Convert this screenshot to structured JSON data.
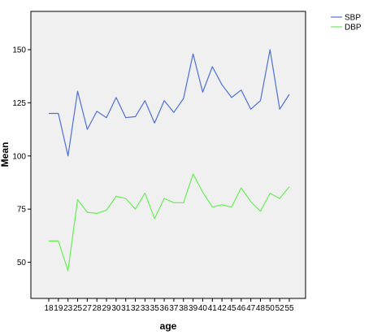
{
  "chart_data": {
    "type": "line",
    "xlabel": "age",
    "ylabel": "Mean",
    "ylim": [
      33,
      168
    ],
    "yticks": [
      50,
      75,
      100,
      125,
      150
    ],
    "grid": false,
    "legend_position": "top-right",
    "categories": [
      "18",
      "19",
      "23",
      "25",
      "27",
      "28",
      "29",
      "30",
      "31",
      "32",
      "33",
      "35",
      "36",
      "37",
      "38",
      "39",
      "40",
      "41",
      "42",
      "45",
      "46",
      "47",
      "48",
      "50",
      "52",
      "55"
    ],
    "series": [
      {
        "name": "SBP",
        "color": "#4f6fd6",
        "values": [
          120,
          120,
          100,
          130.5,
          112.5,
          121,
          118,
          127.5,
          118,
          118.5,
          126,
          115.5,
          126,
          120.5,
          127,
          148,
          130,
          142,
          133.5,
          127.5,
          131,
          122,
          126,
          150,
          122,
          129
        ]
      },
      {
        "name": "DBP",
        "color": "#66ee55",
        "values": [
          60,
          60,
          46,
          79.5,
          73.5,
          73,
          74.5,
          81,
          80,
          75,
          82.5,
          70.5,
          80,
          78,
          78,
          91.5,
          83,
          76,
          77,
          76,
          85,
          78.5,
          74,
          82.5,
          80,
          85.5
        ]
      }
    ]
  },
  "style": {
    "plot_background": "#f0f0f0",
    "axis_color": "#000000"
  }
}
